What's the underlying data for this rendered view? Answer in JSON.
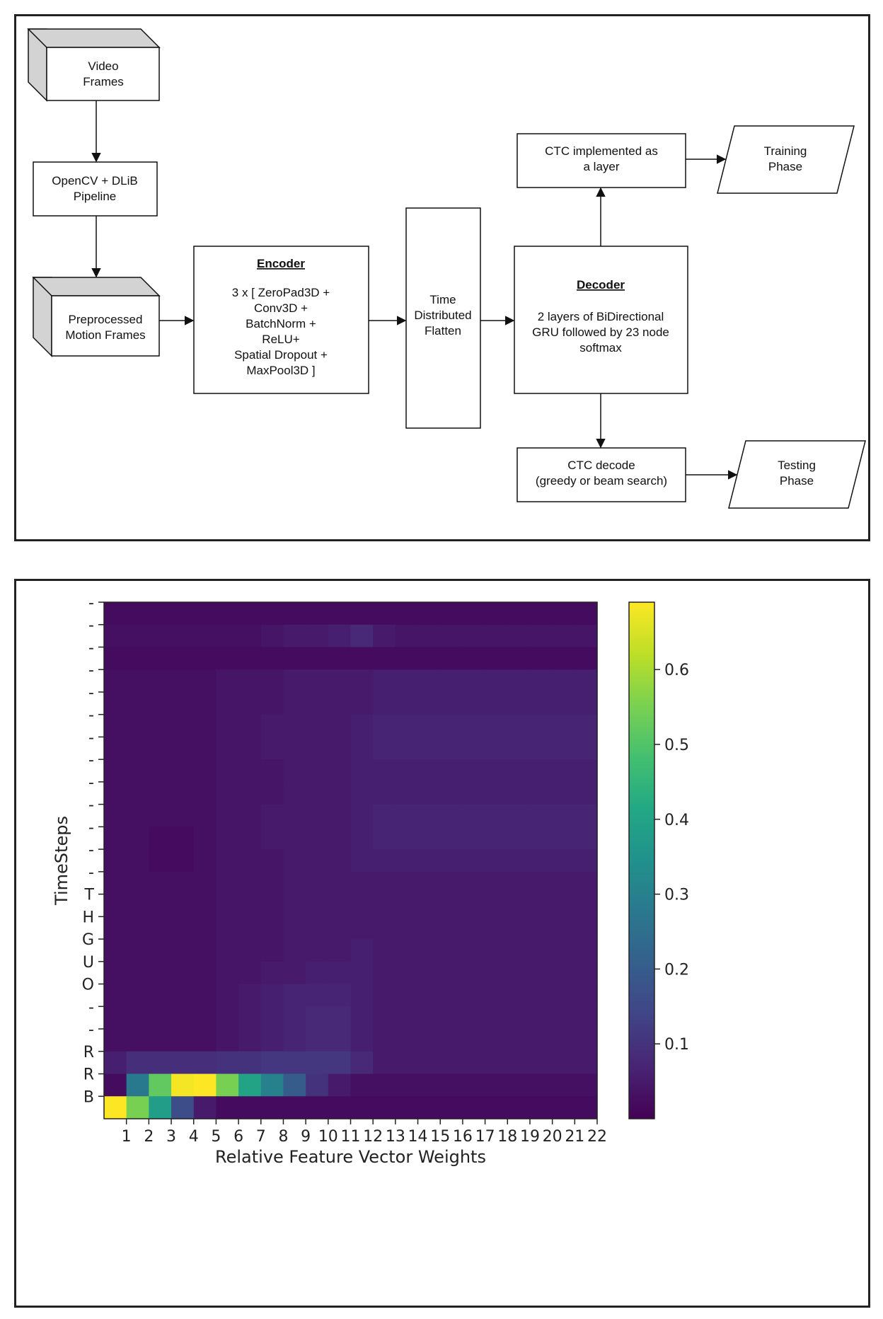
{
  "diagram": {
    "video_frames": [
      "Video",
      "Frames"
    ],
    "opencv_pipeline": [
      "OpenCV + DLiB",
      "Pipeline"
    ],
    "preprocessed": [
      "Preprocessed",
      "Motion Frames"
    ],
    "encoder_title": "Encoder",
    "encoder_body": [
      "3 x [ ZeroPad3D +",
      "Conv3D +",
      "BatchNorm +",
      "ReLU+",
      "Spatial Dropout +",
      "MaxPool3D ]"
    ],
    "flatten": [
      "Time",
      "Distributed",
      "Flatten"
    ],
    "decoder_title": "Decoder",
    "decoder_body": [
      "2 layers of BiDirectional",
      "GRU followed by 23 node",
      "softmax"
    ],
    "ctc_layer": [
      "CTC implemented as",
      "a layer"
    ],
    "training": [
      "Training",
      "Phase"
    ],
    "ctc_decode": [
      "CTC decode",
      "(greedy or beam search)"
    ],
    "testing": [
      "Testing",
      "Phase"
    ]
  },
  "chart_data": {
    "type": "heatmap",
    "title": "",
    "xlabel": "Relative Feature Vector Weights",
    "ylabel": "TimeSteps",
    "x_ticks": [
      "1",
      "2",
      "3",
      "4",
      "5",
      "6",
      "7",
      "8",
      "9",
      "10",
      "11",
      "12",
      "13",
      "14",
      "15",
      "16",
      "17",
      "18",
      "19",
      "20",
      "21",
      "22"
    ],
    "y_ticks_top_to_bottom": [
      "-",
      "-",
      "-",
      "-",
      "-",
      "-",
      "-",
      "-",
      "-",
      "-",
      "-",
      "-",
      "-",
      "T",
      "H",
      "G",
      "U",
      "O",
      "-",
      "-",
      "R",
      "R",
      "B"
    ],
    "colorbar": {
      "min": 0.0,
      "max": 0.69,
      "ticks": [
        0.1,
        0.2,
        0.3,
        0.4,
        0.5,
        0.6
      ],
      "colormap": "viridis"
    },
    "grid": false,
    "values_top_to_bottom": [
      [
        0.02,
        0.02,
        0.02,
        0.02,
        0.02,
        0.02,
        0.02,
        0.02,
        0.02,
        0.02,
        0.02,
        0.02,
        0.02,
        0.02,
        0.02,
        0.02,
        0.02,
        0.02,
        0.02,
        0.02,
        0.02,
        0.02
      ],
      [
        0.03,
        0.03,
        0.03,
        0.03,
        0.03,
        0.03,
        0.03,
        0.04,
        0.05,
        0.05,
        0.06,
        0.08,
        0.05,
        0.04,
        0.04,
        0.04,
        0.04,
        0.04,
        0.04,
        0.04,
        0.04,
        0.04
      ],
      [
        0.02,
        0.02,
        0.02,
        0.02,
        0.02,
        0.02,
        0.02,
        0.02,
        0.02,
        0.02,
        0.02,
        0.02,
        0.02,
        0.02,
        0.02,
        0.02,
        0.02,
        0.02,
        0.02,
        0.02,
        0.02,
        0.02
      ],
      [
        0.03,
        0.03,
        0.03,
        0.03,
        0.03,
        0.04,
        0.04,
        0.04,
        0.05,
        0.05,
        0.05,
        0.05,
        0.06,
        0.06,
        0.06,
        0.06,
        0.06,
        0.06,
        0.06,
        0.06,
        0.06,
        0.06
      ],
      [
        0.03,
        0.03,
        0.03,
        0.03,
        0.03,
        0.04,
        0.04,
        0.04,
        0.05,
        0.05,
        0.05,
        0.05,
        0.06,
        0.06,
        0.06,
        0.06,
        0.06,
        0.06,
        0.06,
        0.06,
        0.06,
        0.06
      ],
      [
        0.03,
        0.03,
        0.03,
        0.03,
        0.03,
        0.04,
        0.04,
        0.05,
        0.05,
        0.05,
        0.05,
        0.06,
        0.07,
        0.07,
        0.07,
        0.07,
        0.07,
        0.07,
        0.07,
        0.07,
        0.07,
        0.07
      ],
      [
        0.03,
        0.03,
        0.03,
        0.03,
        0.03,
        0.04,
        0.04,
        0.05,
        0.05,
        0.05,
        0.05,
        0.06,
        0.07,
        0.07,
        0.07,
        0.07,
        0.07,
        0.07,
        0.07,
        0.07,
        0.07,
        0.07
      ],
      [
        0.03,
        0.03,
        0.03,
        0.03,
        0.03,
        0.04,
        0.04,
        0.04,
        0.05,
        0.05,
        0.05,
        0.06,
        0.06,
        0.06,
        0.06,
        0.06,
        0.06,
        0.06,
        0.06,
        0.06,
        0.06,
        0.06
      ],
      [
        0.03,
        0.03,
        0.03,
        0.03,
        0.03,
        0.04,
        0.04,
        0.04,
        0.05,
        0.05,
        0.05,
        0.06,
        0.06,
        0.06,
        0.06,
        0.06,
        0.06,
        0.06,
        0.06,
        0.06,
        0.06,
        0.06
      ],
      [
        0.03,
        0.03,
        0.03,
        0.03,
        0.03,
        0.04,
        0.04,
        0.05,
        0.05,
        0.05,
        0.05,
        0.06,
        0.07,
        0.07,
        0.07,
        0.07,
        0.07,
        0.07,
        0.07,
        0.07,
        0.07,
        0.07
      ],
      [
        0.03,
        0.03,
        0.02,
        0.02,
        0.03,
        0.04,
        0.04,
        0.05,
        0.05,
        0.05,
        0.05,
        0.06,
        0.07,
        0.07,
        0.07,
        0.07,
        0.07,
        0.07,
        0.07,
        0.07,
        0.07,
        0.07
      ],
      [
        0.03,
        0.03,
        0.02,
        0.02,
        0.03,
        0.04,
        0.04,
        0.04,
        0.05,
        0.05,
        0.05,
        0.06,
        0.06,
        0.06,
        0.06,
        0.06,
        0.06,
        0.06,
        0.06,
        0.06,
        0.06,
        0.06
      ],
      [
        0.03,
        0.03,
        0.03,
        0.03,
        0.03,
        0.04,
        0.04,
        0.04,
        0.05,
        0.05,
        0.05,
        0.05,
        0.05,
        0.05,
        0.05,
        0.05,
        0.05,
        0.05,
        0.05,
        0.05,
        0.05,
        0.05
      ],
      [
        0.03,
        0.03,
        0.03,
        0.03,
        0.03,
        0.04,
        0.04,
        0.04,
        0.05,
        0.05,
        0.05,
        0.05,
        0.05,
        0.05,
        0.05,
        0.05,
        0.05,
        0.05,
        0.05,
        0.05,
        0.05,
        0.05
      ],
      [
        0.03,
        0.03,
        0.03,
        0.03,
        0.03,
        0.04,
        0.04,
        0.04,
        0.05,
        0.05,
        0.05,
        0.05,
        0.05,
        0.05,
        0.05,
        0.05,
        0.05,
        0.05,
        0.05,
        0.05,
        0.05,
        0.05
      ],
      [
        0.03,
        0.03,
        0.03,
        0.03,
        0.03,
        0.04,
        0.04,
        0.04,
        0.05,
        0.05,
        0.05,
        0.06,
        0.05,
        0.05,
        0.05,
        0.05,
        0.05,
        0.05,
        0.05,
        0.05,
        0.05,
        0.05
      ],
      [
        0.03,
        0.03,
        0.03,
        0.03,
        0.03,
        0.04,
        0.04,
        0.05,
        0.05,
        0.06,
        0.06,
        0.06,
        0.05,
        0.05,
        0.05,
        0.05,
        0.05,
        0.05,
        0.05,
        0.05,
        0.05,
        0.05
      ],
      [
        0.03,
        0.03,
        0.03,
        0.03,
        0.03,
        0.04,
        0.05,
        0.06,
        0.07,
        0.07,
        0.07,
        0.06,
        0.05,
        0.05,
        0.05,
        0.05,
        0.05,
        0.05,
        0.05,
        0.05,
        0.05,
        0.05
      ],
      [
        0.03,
        0.03,
        0.03,
        0.03,
        0.03,
        0.04,
        0.05,
        0.06,
        0.07,
        0.08,
        0.08,
        0.06,
        0.05,
        0.05,
        0.05,
        0.05,
        0.05,
        0.05,
        0.05,
        0.05,
        0.05,
        0.05
      ],
      [
        0.03,
        0.03,
        0.03,
        0.03,
        0.03,
        0.04,
        0.05,
        0.06,
        0.07,
        0.08,
        0.08,
        0.06,
        0.05,
        0.05,
        0.05,
        0.05,
        0.05,
        0.05,
        0.05,
        0.05,
        0.05,
        0.05
      ],
      [
        0.06,
        0.09,
        0.09,
        0.09,
        0.09,
        0.1,
        0.1,
        0.11,
        0.11,
        0.11,
        0.11,
        0.08,
        0.05,
        0.05,
        0.05,
        0.05,
        0.05,
        0.05,
        0.05,
        0.05,
        0.05,
        0.05
      ],
      [
        0.02,
        0.28,
        0.52,
        0.68,
        0.69,
        0.55,
        0.4,
        0.3,
        0.2,
        0.1,
        0.05,
        0.03,
        0.03,
        0.03,
        0.03,
        0.03,
        0.03,
        0.03,
        0.03,
        0.03,
        0.03,
        0.03
      ],
      [
        0.69,
        0.55,
        0.38,
        0.16,
        0.05,
        0.02,
        0.02,
        0.02,
        0.02,
        0.02,
        0.02,
        0.02,
        0.02,
        0.02,
        0.02,
        0.02,
        0.02,
        0.02,
        0.02,
        0.02,
        0.02,
        0.02
      ]
    ]
  }
}
